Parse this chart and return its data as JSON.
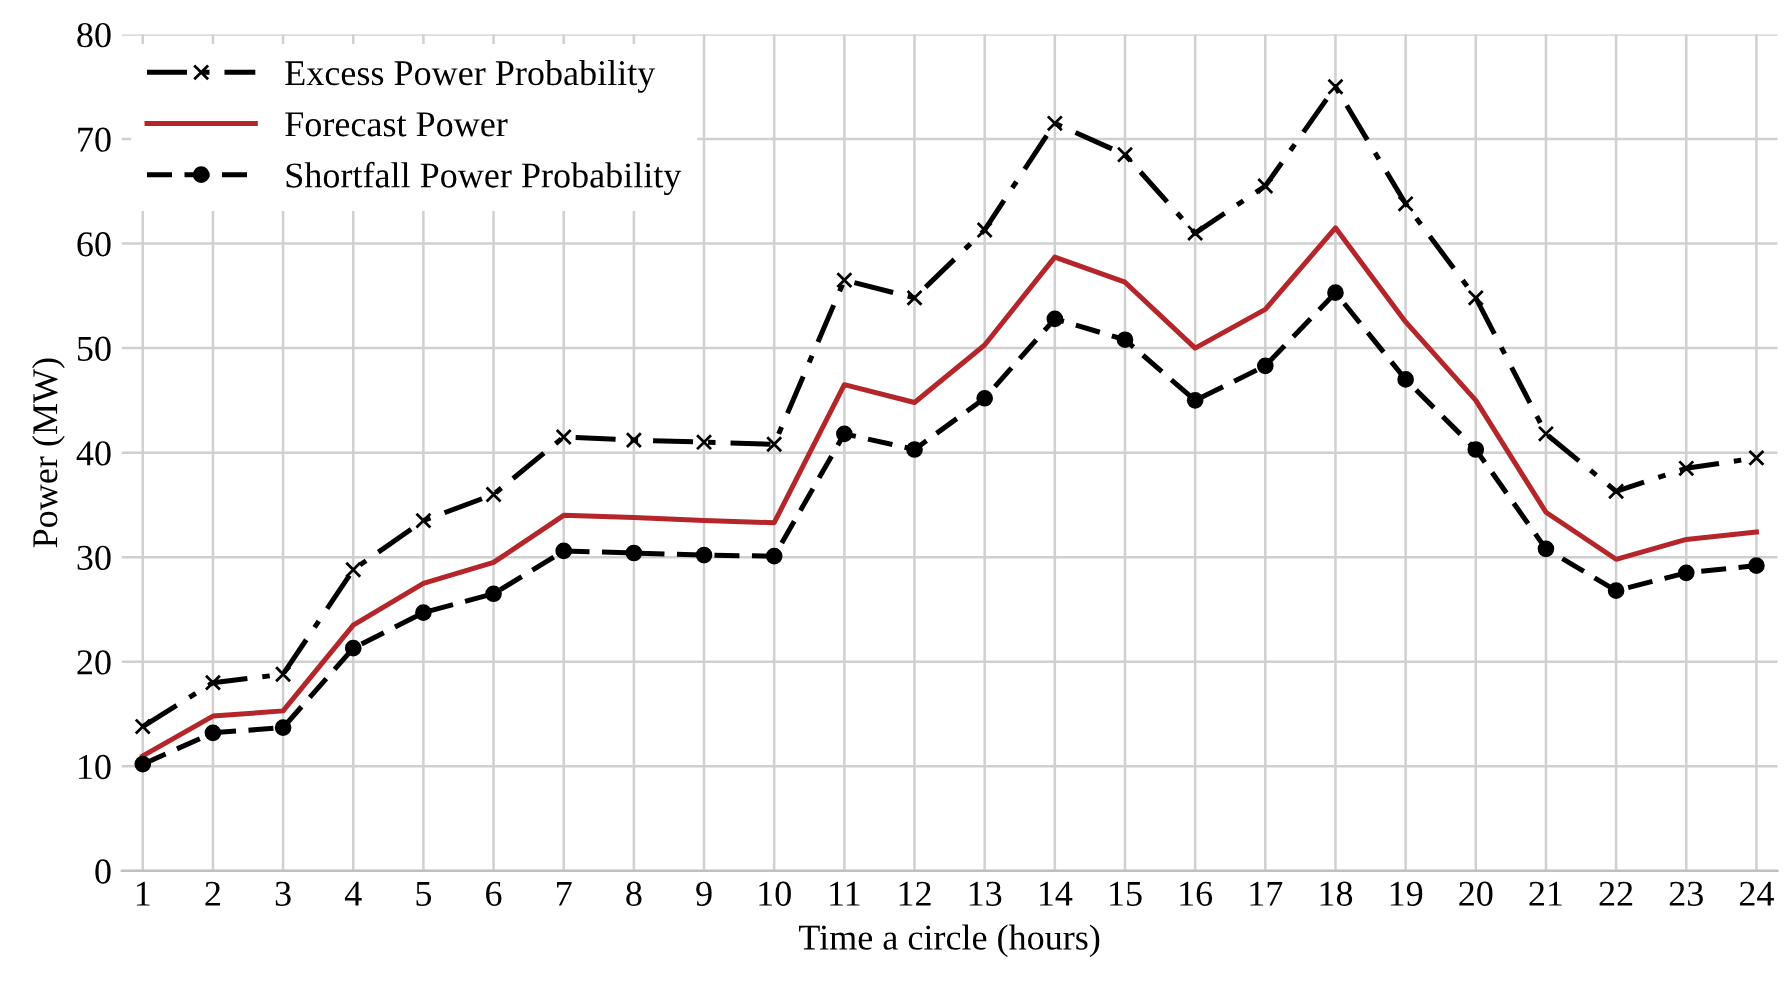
{
  "chart_data": {
    "type": "line",
    "xlabel": "Time a circle (hours)",
    "ylabel": "Power (MW)",
    "categories": [
      "1",
      "2",
      "3",
      "4",
      "5",
      "6",
      "7",
      "8",
      "9",
      "10",
      "11",
      "12",
      "13",
      "14",
      "15",
      "16",
      "17",
      "18",
      "19",
      "20",
      "21",
      "22",
      "23",
      "24"
    ],
    "ylim": [
      0,
      80
    ],
    "yticks": [
      0,
      10,
      20,
      30,
      40,
      50,
      60,
      70,
      80
    ],
    "grid": true,
    "legend": "top left",
    "series": [
      {
        "name": "Excess Power Probability",
        "color": "#000000",
        "marker": "cross",
        "line_style": "dashdot",
        "values": [
          13.8,
          18,
          18.8,
          28.8,
          33.5,
          36,
          41.5,
          41.2,
          41,
          40.8,
          56.5,
          54.8,
          61.3,
          71.5,
          68.5,
          61,
          65.5,
          75,
          63.8,
          54.8,
          41.8,
          36.3,
          38.5,
          39.5
        ]
      },
      {
        "name": "Forecast Power",
        "color": "#b5262b",
        "marker": "none",
        "line_style": "solid",
        "values": [
          11,
          14.8,
          15.3,
          23.5,
          27.5,
          29.5,
          34,
          33.8,
          33.5,
          33.3,
          46.5,
          44.8,
          50.3,
          58.7,
          56.3,
          50,
          53.7,
          61.5,
          52.5,
          45,
          34.3,
          29.8,
          31.7,
          32.4
        ]
      },
      {
        "name": "Shortfall Power Probability",
        "color": "#000000",
        "marker": "circle",
        "line_style": "dashed",
        "values": [
          10.2,
          13.2,
          13.7,
          21.3,
          24.7,
          26.5,
          30.6,
          30.4,
          30.2,
          30.1,
          41.8,
          40.3,
          45.2,
          52.8,
          50.8,
          45,
          48.3,
          55.3,
          47,
          40.3,
          30.8,
          26.8,
          28.5,
          29.2
        ]
      }
    ]
  }
}
